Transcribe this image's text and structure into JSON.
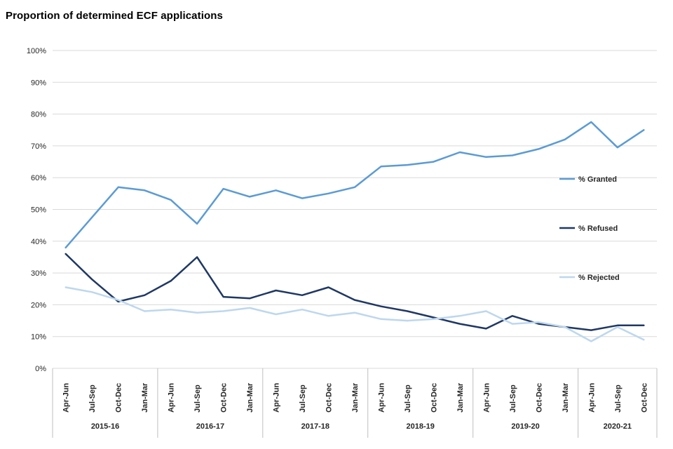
{
  "title": "Proportion of determined ECF applications",
  "chart_data": {
    "type": "line",
    "title": "Proportion of determined ECF applications",
    "xlabel": "",
    "ylabel": "",
    "ylim": [
      0,
      100
    ],
    "ytick_step": 10,
    "ytick_labels": [
      "0%",
      "10%",
      "20%",
      "30%",
      "40%",
      "50%",
      "60%",
      "70%",
      "80%",
      "90%",
      "100%"
    ],
    "grid": true,
    "legend_position": "right-inside",
    "categories": [
      "Apr-Jun",
      "Jul-Sep",
      "Oct-Dec",
      "Jan-Mar",
      "Apr-Jun",
      "Jul-Sep",
      "Oct-Dec",
      "Jan-Mar",
      "Apr-Jun",
      "Jul-Sep",
      "Oct-Dec",
      "Jan-Mar",
      "Apr-Jun",
      "Jul-Sep",
      "Oct-Dec",
      "Jan-Mar",
      "Apr-Jun",
      "Jul-Sep",
      "Oct-Dec",
      "Jan-Mar",
      "Apr-Jun",
      "Jul-Sep",
      "Oct-Dec"
    ],
    "year_groups": [
      {
        "label": "2015-16",
        "count": 4
      },
      {
        "label": "2016-17",
        "count": 4
      },
      {
        "label": "2017-18",
        "count": 4
      },
      {
        "label": "2018-19",
        "count": 4
      },
      {
        "label": "2019-20",
        "count": 4
      },
      {
        "label": "2020-21",
        "count": 3
      }
    ],
    "series": [
      {
        "name": "% Granted",
        "color": "#5B9BD5",
        "values": [
          38,
          47.5,
          57,
          56,
          53,
          45.5,
          56.5,
          54,
          56,
          53.5,
          55,
          57,
          63.5,
          64,
          65,
          68,
          66.5,
          67,
          69,
          72,
          77.5,
          69.5,
          75
        ]
      },
      {
        "name": "% Refused",
        "color": "#1F3864",
        "values": [
          36,
          28,
          21,
          23,
          27.5,
          35,
          22.5,
          22,
          24.5,
          23,
          25.5,
          21.5,
          19.5,
          18,
          16,
          14,
          12.5,
          16.5,
          14,
          13,
          12,
          13.5,
          13.5
        ]
      },
      {
        "name": "% Rejected",
        "color": "#BDD7EE",
        "values": [
          25.5,
          24,
          21.5,
          18,
          18.5,
          17.5,
          18,
          19,
          17,
          18.5,
          16.5,
          17.5,
          15.5,
          15,
          15.5,
          16.5,
          18,
          14,
          14.5,
          13,
          8.5,
          13,
          9
        ]
      }
    ],
    "gridline_color": "#D9D9D9",
    "separator_color": "#BFBFBF"
  }
}
